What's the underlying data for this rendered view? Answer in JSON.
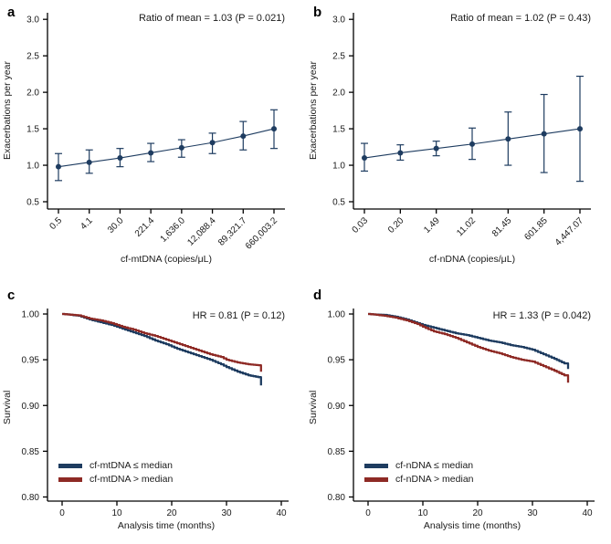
{
  "figure": {
    "background": "#ffffff",
    "text_color": "#1a1a1a",
    "axis_color": "#000000"
  },
  "chart_data": [
    {
      "type": "line",
      "style": "means-with-error-bars",
      "panel_letter": "a",
      "title": "Ratio of mean = 1.03 (P = 0.021)",
      "xlabel": "cf-mtDNA (copies/μL)",
      "ylabel": "Exacerbations per year",
      "categories": [
        "0.5",
        "4.1",
        "30.0",
        "221.4",
        "1,636.0",
        "12,088.4",
        "89,321.7",
        "660,003.2"
      ],
      "means": [
        0.98,
        1.04,
        1.1,
        1.17,
        1.24,
        1.31,
        1.4,
        1.5
      ],
      "ci_lower": [
        0.79,
        0.89,
        0.98,
        1.05,
        1.11,
        1.16,
        1.21,
        1.23
      ],
      "ci_upper": [
        1.16,
        1.21,
        1.23,
        1.3,
        1.35,
        1.44,
        1.6,
        1.76
      ],
      "yticks": [
        "0.5",
        "1.0",
        "1.5",
        "2.0",
        "2.5",
        "3.0"
      ],
      "ylim": [
        0.4,
        3.09
      ],
      "grid": false,
      "legend": null,
      "color": "#1e3c60"
    },
    {
      "type": "line",
      "style": "means-with-error-bars",
      "panel_letter": "b",
      "title": "Ratio of mean = 1.02 (P = 0.43)",
      "xlabel": "cf-nDNA (copies/μL)",
      "ylabel": "Exacerbations per year",
      "categories": [
        "0.03",
        "0.20",
        "1.49",
        "11.02",
        "81.45",
        "601.85",
        "4,447.07"
      ],
      "means": [
        1.1,
        1.17,
        1.23,
        1.29,
        1.36,
        1.43,
        1.5
      ],
      "ci_lower": [
        0.92,
        1.07,
        1.13,
        1.08,
        1.0,
        0.9,
        0.78
      ],
      "ci_upper": [
        1.3,
        1.28,
        1.33,
        1.51,
        1.73,
        1.97,
        2.22
      ],
      "yticks": [
        "0.5",
        "1.0",
        "1.5",
        "2.0",
        "2.5",
        "3.0"
      ],
      "ylim": [
        0.4,
        3.09
      ],
      "grid": false,
      "legend": null,
      "color": "#1e3c60"
    },
    {
      "type": "line",
      "style": "km-step",
      "panel_letter": "c",
      "title": "HR = 0.81 (P = 0.12)",
      "xlabel": "Analysis time (months)",
      "ylabel": "Survival",
      "xticks": [
        "0",
        "10",
        "20",
        "30",
        "40"
      ],
      "yticks": [
        "0.80",
        "0.85",
        "0.90",
        "0.95",
        "1.00"
      ],
      "xlim": [
        0,
        40
      ],
      "ylim": [
        0.7955,
        1.006
      ],
      "grid": false,
      "legend_position": "bottom-left",
      "series": [
        {
          "name": "cf-mtDNA ≤ median",
          "color": "#1e3c60",
          "x": [
            0,
            1,
            3,
            5,
            7,
            9,
            11,
            13,
            15,
            17,
            19,
            21,
            23,
            25,
            27,
            29,
            30,
            32,
            34,
            35.8,
            36.3
          ],
          "y": [
            1.0,
            0.9995,
            0.998,
            0.994,
            0.991,
            0.988,
            0.984,
            0.98,
            0.976,
            0.971,
            0.967,
            0.962,
            0.958,
            0.954,
            0.95,
            0.945,
            0.942,
            0.937,
            0.933,
            0.931,
            0.922
          ]
        },
        {
          "name": "cf-mtDNA > median",
          "color": "#8e2a25",
          "x": [
            0,
            1,
            3,
            5,
            7,
            9,
            11,
            13,
            15,
            17,
            19,
            21,
            23,
            25,
            27,
            29,
            30,
            32,
            34,
            35.8,
            36.3
          ],
          "y": [
            1.0,
            0.9995,
            0.9985,
            0.995,
            0.993,
            0.99,
            0.986,
            0.983,
            0.979,
            0.976,
            0.972,
            0.968,
            0.964,
            0.96,
            0.956,
            0.953,
            0.95,
            0.947,
            0.945,
            0.944,
            0.937
          ]
        }
      ]
    },
    {
      "type": "line",
      "style": "km-step",
      "panel_letter": "d",
      "title": "HR = 1.33 (P = 0.042)",
      "xlabel": "Analysis time (months)",
      "ylabel": "Survival",
      "xticks": [
        "0",
        "10",
        "20",
        "30",
        "40"
      ],
      "yticks": [
        "0.80",
        "0.85",
        "0.90",
        "0.95",
        "1.00"
      ],
      "xlim": [
        0,
        40
      ],
      "ylim": [
        0.7955,
        1.006
      ],
      "grid": false,
      "legend_position": "bottom-left",
      "series": [
        {
          "name": "cf-nDNA ≤ median",
          "color": "#1e3c60",
          "x": [
            0,
            1,
            3,
            5,
            7,
            9,
            10,
            12,
            14,
            16,
            18,
            20,
            22,
            24,
            26,
            28,
            30,
            32,
            34,
            35.8,
            36.5
          ],
          "y": [
            1.0,
            0.9995,
            0.999,
            0.997,
            0.994,
            0.99,
            0.988,
            0.985,
            0.982,
            0.979,
            0.977,
            0.974,
            0.971,
            0.969,
            0.966,
            0.964,
            0.961,
            0.956,
            0.951,
            0.946,
            0.94
          ]
        },
        {
          "name": "cf-nDNA > median",
          "color": "#8e2a25",
          "x": [
            0,
            1,
            3,
            5,
            7,
            9,
            10,
            12,
            14,
            16,
            18,
            20,
            22,
            24,
            26,
            28,
            30,
            32,
            34,
            35.8,
            36.5
          ],
          "y": [
            1.0,
            0.9995,
            0.998,
            0.996,
            0.993,
            0.989,
            0.986,
            0.981,
            0.978,
            0.974,
            0.969,
            0.964,
            0.96,
            0.957,
            0.953,
            0.95,
            0.948,
            0.943,
            0.938,
            0.933,
            0.925
          ]
        }
      ]
    }
  ]
}
